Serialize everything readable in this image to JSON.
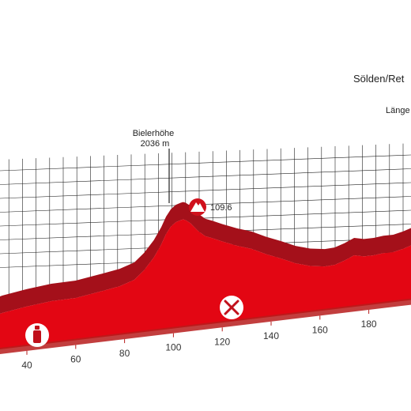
{
  "chart_data": {
    "type": "area",
    "title": "",
    "xlabel": "",
    "ylabel": "",
    "x_ticks": [
      40,
      60,
      80,
      100,
      120,
      140,
      160,
      180
    ],
    "xlim": [
      24,
      206
    ],
    "profile": {
      "x": [
        24,
        30,
        40,
        50,
        60,
        70,
        78,
        84,
        88,
        92,
        95,
        97,
        99,
        101,
        103,
        104,
        105,
        107,
        110,
        113,
        116,
        120,
        126,
        132,
        138,
        144,
        150,
        156,
        162,
        166,
        170,
        174,
        178,
        182,
        186,
        190,
        194,
        198,
        202,
        206
      ],
      "y_units": "metres",
      "y": [
        1110,
        1160,
        1220,
        1270,
        1300,
        1360,
        1410,
        1470,
        1560,
        1680,
        1800,
        1900,
        1970,
        2010,
        2030,
        2036,
        2030,
        2000,
        1930,
        1880,
        1860,
        1830,
        1790,
        1760,
        1710,
        1670,
        1625,
        1600,
        1595,
        1610,
        1650,
        1700,
        1690,
        1700,
        1720,
        1730,
        1760,
        1800,
        1880,
        1950
      ]
    },
    "annotations": [
      {
        "name": "Bielerhöhe",
        "elevation": "2036 m"
      },
      {
        "name": "Sölden/Ret"
      },
      {
        "name": "Länge"
      }
    ],
    "markers": [
      {
        "type": "climb",
        "icon": "mountain-icon",
        "label": "109.6"
      },
      {
        "type": "feed-zone",
        "icon": "fork-knife-icon"
      },
      {
        "type": "water",
        "icon": "bottle-icon"
      }
    ],
    "colors": {
      "fill": "#e30613",
      "dark": "#a4101a",
      "grid": "#222222",
      "axis": "#b71c1c"
    }
  }
}
